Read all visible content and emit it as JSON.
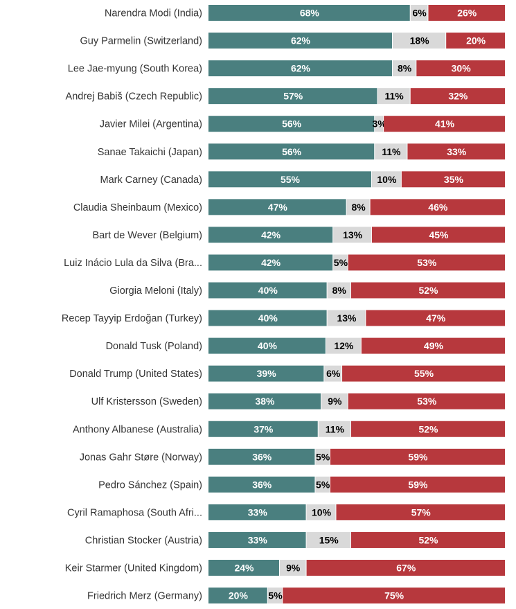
{
  "chart_data": {
    "type": "bar",
    "orientation": "horizontal",
    "stacked": true,
    "xlim": [
      0,
      100
    ],
    "grid": false,
    "value_suffix": "%",
    "colors": [
      "#4a7f7f",
      "#d9d9d9",
      "#b7383d"
    ],
    "label_colors": [
      "#ffffff",
      "#000000",
      "#ffffff"
    ],
    "categories": [
      "Narendra Modi (India)",
      "Guy Parmelin (Switzerland)",
      "Lee Jae-myung (South Korea)",
      "Andrej Babiš (Czech Republic)",
      "Javier Milei (Argentina)",
      "Sanae Takaichi (Japan)",
      "Mark Carney (Canada)",
      "Claudia Sheinbaum (Mexico)",
      "Bart de Wever (Belgium)",
      "Luiz Inácio Lula da Silva (Bra...",
      "Giorgia Meloni (Italy)",
      "Recep Tayyip Erdoğan (Turkey)",
      "Donald Tusk (Poland)",
      "Donald Trump (United States)",
      "Ulf Kristersson (Sweden)",
      "Anthony Albanese (Australia)",
      "Jonas Gahr Støre (Norway)",
      "Pedro Sánchez (Spain)",
      "Cyril Ramaphosa (South Afri...",
      "Christian Stocker (Austria)",
      "Keir Starmer (United Kingdom)",
      "Friedrich Merz (Germany)"
    ],
    "series": [
      {
        "values": [
          68,
          62,
          62,
          57,
          56,
          56,
          55,
          47,
          42,
          42,
          40,
          40,
          40,
          39,
          38,
          37,
          36,
          36,
          33,
          33,
          24,
          20
        ]
      },
      {
        "values": [
          6,
          18,
          8,
          11,
          3,
          11,
          10,
          8,
          13,
          5,
          8,
          13,
          12,
          6,
          9,
          11,
          5,
          5,
          10,
          15,
          9,
          5
        ]
      },
      {
        "values": [
          26,
          20,
          30,
          32,
          41,
          33,
          35,
          46,
          45,
          53,
          52,
          47,
          49,
          55,
          53,
          52,
          59,
          59,
          57,
          52,
          67,
          75
        ]
      }
    ]
  }
}
